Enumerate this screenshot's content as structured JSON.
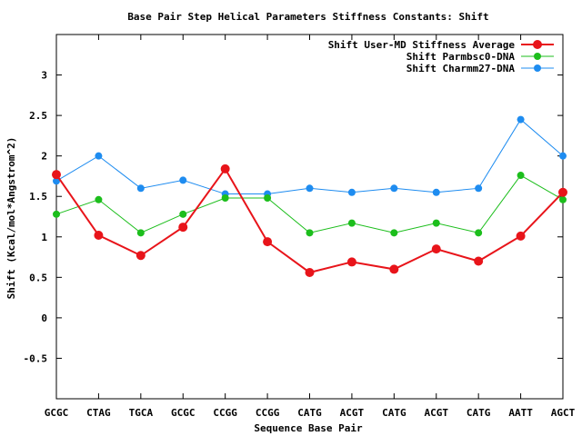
{
  "chart_data": {
    "type": "line",
    "title": "Base Pair Step Helical Parameters Stiffness Constants: Shift",
    "xlabel": "Sequence Base Pair",
    "ylabel": "Shift (Kcal/mol*Angstrom^2)",
    "categories": [
      "GCGC",
      "CTAG",
      "TGCA",
      "GCGC",
      "CCGG",
      "CCGG",
      "CATG",
      "ACGT",
      "CATG",
      "ACGT",
      "CATG",
      "AATT",
      "AGCT"
    ],
    "ylim": [
      -1,
      3.5
    ],
    "yticks": [
      -0.5,
      0,
      0.5,
      1,
      1.5,
      2,
      2.5,
      3
    ],
    "ytick_labels": [
      "-0.5",
      "0",
      "0.5",
      "1",
      "1.5",
      "2",
      "2.5",
      "3"
    ],
    "grid": false,
    "legend_position": "top-right",
    "series": [
      {
        "name": "Shift User-MD Stiffness Average",
        "color": "#e8141a",
        "values": [
          1.77,
          1.02,
          0.77,
          1.12,
          1.84,
          0.94,
          0.56,
          0.69,
          0.6,
          0.85,
          0.7,
          1.01,
          1.55
        ]
      },
      {
        "name": "Shift Parmbsc0-DNA",
        "color": "#1cbe1c",
        "values": [
          1.28,
          1.46,
          1.05,
          1.28,
          1.48,
          1.48,
          1.05,
          1.17,
          1.05,
          1.17,
          1.05,
          1.76,
          1.46
        ]
      },
      {
        "name": "Shift Charmm27-DNA",
        "color": "#1e8cf0",
        "values": [
          1.69,
          2.0,
          1.6,
          1.7,
          1.53,
          1.53,
          1.6,
          1.55,
          1.6,
          1.55,
          1.6,
          2.45,
          2.0
        ]
      }
    ]
  }
}
